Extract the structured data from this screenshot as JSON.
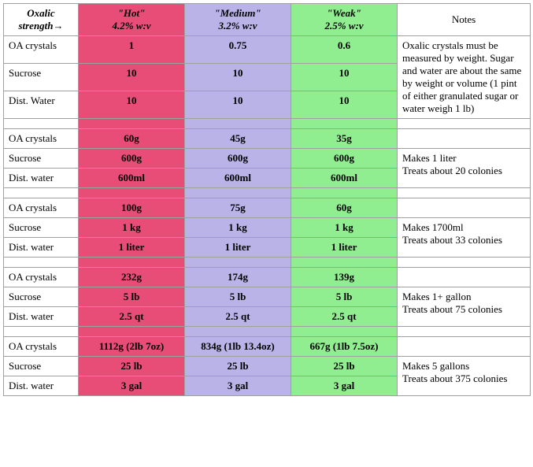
{
  "colors": {
    "hot": "#e84d77",
    "medium": "#b9b3e8",
    "weak": "#90ee90",
    "border": "#a0a0a0",
    "text": "#000000",
    "bg": "#ffffff"
  },
  "headers": {
    "label_line1": "Oxalic",
    "label_line2": "strength→",
    "hot_line1": "\"Hot\"",
    "hot_line2": "4.2% w:v",
    "med_line1": "\"Medium\"",
    "med_line2": "3.2% w:v",
    "weak_line1": "\"Weak\"",
    "weak_line2": "2.5% w:v",
    "notes": "Notes"
  },
  "labels": {
    "oa": "OA crystals",
    "sucrose": "Sucrose",
    "distWater1": "Dist. Water",
    "distWater2": "Dist. water"
  },
  "groups": [
    {
      "rows": [
        {
          "label": "oa",
          "hot": "1",
          "med": "0.75",
          "weak": "0.6"
        },
        {
          "label": "sucrose",
          "hot": "10",
          "med": "10",
          "weak": "10"
        },
        {
          "label": "distWater1",
          "hot": "10",
          "med": "10",
          "weak": "10"
        }
      ],
      "notes": "Oxalic crystals must be measured by weight. Sugar and water are about the same by weight or volume (1 pint of either granulated sugar or water weigh 1 lb)",
      "notes_span": "full"
    },
    {
      "rows": [
        {
          "label": "oa",
          "hot": "60g",
          "med": "45g",
          "weak": "35g"
        },
        {
          "label": "sucrose",
          "hot": "600g",
          "med": "600g",
          "weak": "600g"
        },
        {
          "label": "distWater2",
          "hot": "600ml",
          "med": "600ml",
          "weak": "600ml"
        }
      ],
      "notes": "Makes 1 liter\nTreats about 20 colonies",
      "notes_span": "last2"
    },
    {
      "rows": [
        {
          "label": "oa",
          "hot": "100g",
          "med": "75g",
          "weak": "60g"
        },
        {
          "label": "sucrose",
          "hot": "1 kg",
          "med": "1 kg",
          "weak": "1 kg"
        },
        {
          "label": "distWater2",
          "hot": "1 liter",
          "med": "1 liter",
          "weak": "1 liter"
        }
      ],
      "notes": "Makes 1700ml\nTreats about 33 colonies",
      "notes_span": "last2"
    },
    {
      "rows": [
        {
          "label": "oa",
          "hot": "232g",
          "med": "174g",
          "weak": "139g"
        },
        {
          "label": "sucrose",
          "hot": "5 lb",
          "med": "5 lb",
          "weak": "5 lb"
        },
        {
          "label": "distWater2",
          "hot": "2.5 qt",
          "med": "2.5 qt",
          "weak": "2.5 qt"
        }
      ],
      "notes": "Makes 1+ gallon\nTreats about 75 colonies",
      "notes_span": "last2"
    },
    {
      "rows": [
        {
          "label": "oa",
          "hot": "1112g (2lb 7oz)",
          "med": "834g (1lb 13.4oz)",
          "weak": "667g (1lb 7.5oz)"
        },
        {
          "label": "sucrose",
          "hot": "25 lb",
          "med": "25 lb",
          "weak": "25 lb"
        },
        {
          "label": "distWater2",
          "hot": "3 gal",
          "med": "3 gal",
          "weak": "3 gal"
        }
      ],
      "notes": "Makes 5 gallons\nTreats about 375 colonies",
      "notes_span": "last2"
    }
  ]
}
